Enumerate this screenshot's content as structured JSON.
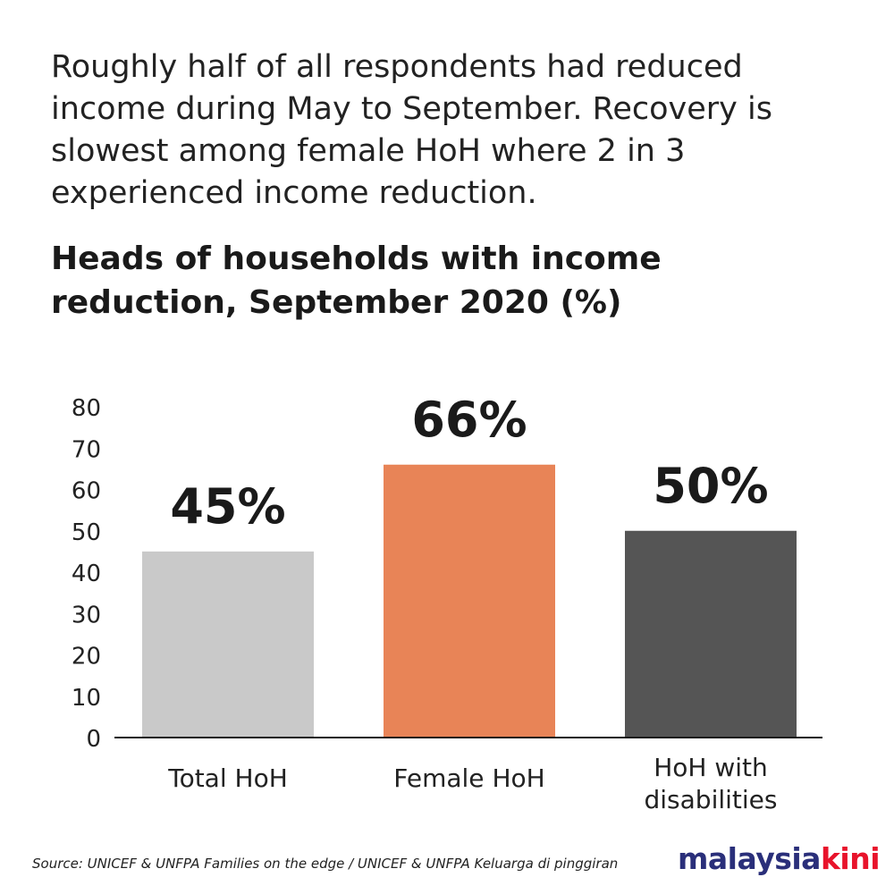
{
  "intro_text": "Roughly half of all respondents had reduced income during May to September. Recovery is slowest among female HoH where 2 in 3 experienced income reduction.",
  "chart_data": {
    "type": "bar",
    "title": "Heads of households with income reduction, September 2020 (%)",
    "categories": [
      "Total HoH",
      "Female HoH",
      "HoH with disabilities"
    ],
    "category_lines": [
      [
        "Total HoH"
      ],
      [
        "Female HoH"
      ],
      [
        "HoH with",
        "disabilities"
      ]
    ],
    "values": [
      45,
      66,
      50
    ],
    "data_labels": [
      "45%",
      "66%",
      "50%"
    ],
    "colors": [
      "#c9c9c9",
      "#e88457",
      "#555555"
    ],
    "ylim": [
      0,
      80
    ],
    "yticks": [
      "0",
      "10",
      "20",
      "30",
      "40",
      "50",
      "60",
      "70",
      "80"
    ],
    "xlabel": "",
    "ylabel": "",
    "grid": false,
    "legend": "none"
  },
  "source": "Source: UNICEF & UNFPA Families on the edge / UNICEF & UNFPA Keluarga di pinggiran",
  "logo": {
    "part1": "malaysia",
    "part2": "kini"
  }
}
